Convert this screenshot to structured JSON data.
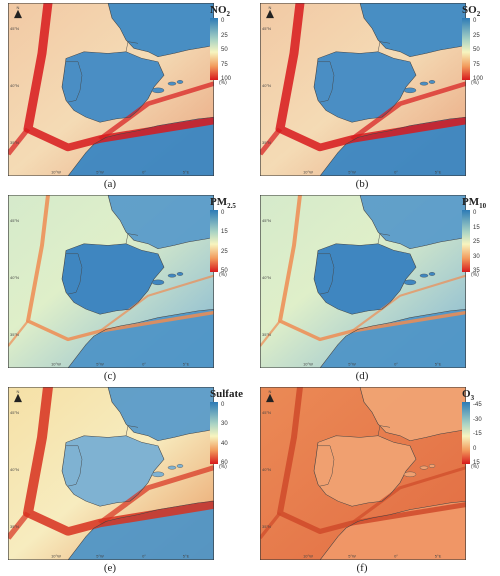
{
  "panels": [
    {
      "caption": "(a)",
      "legend_title": "NO",
      "legend_sub": "2",
      "ticks": [
        "0",
        "25",
        "50",
        "75",
        "100"
      ],
      "unit": "(%)",
      "scheme": "strong"
    },
    {
      "caption": "(b)",
      "legend_title": "SO",
      "legend_sub": "2",
      "ticks": [
        "0",
        "25",
        "50",
        "75",
        "100"
      ],
      "unit": "(%)",
      "scheme": "strong"
    },
    {
      "caption": "(c)",
      "legend_title": "PM",
      "legend_sub": "2.5",
      "ticks": [
        "0",
        "15",
        "25",
        "50"
      ],
      "unit": "(%)",
      "scheme": "pm"
    },
    {
      "caption": "(d)",
      "legend_title": "PM",
      "legend_sub": "10",
      "ticks": [
        "0",
        "15",
        "25",
        "30",
        "35"
      ],
      "unit": "(%)",
      "scheme": "pm"
    },
    {
      "caption": "(e)",
      "legend_title": "Sulfate",
      "legend_sub": "",
      "ticks": [
        "0",
        "30",
        "40",
        "60"
      ],
      "unit": "(%)",
      "scheme": "sulfate"
    },
    {
      "caption": "(f)",
      "legend_title": "O",
      "legend_sub": "3",
      "ticks": [
        "-45",
        "-30",
        "-15",
        "0",
        "15"
      ],
      "unit": "(%)",
      "scheme": "o3"
    }
  ],
  "lat_labels": [
    "45°N",
    "40°N",
    "35°N"
  ],
  "lon_labels": [
    "10°W",
    "5°W",
    "0°",
    "5°E"
  ],
  "north_label": "N",
  "colors": {
    "low": "#2d7bb6",
    "mid": "#f7f5c0",
    "high": "#d7191c",
    "land_low": "#4a8ec4",
    "sea_mid": "#dfefc9",
    "o3_base": "#ec8a5a",
    "o3_dark": "#cf4a2a"
  }
}
